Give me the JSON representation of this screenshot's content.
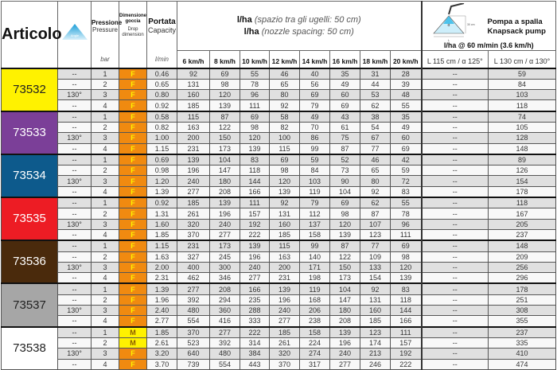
{
  "header": {
    "articolo": "Articolo",
    "angle_icon_label": "Angle",
    "pressure_it": "Pressione",
    "pressure_en": "Pressure",
    "pressure_unit": "bar",
    "drop_it": "Dimensione goccia",
    "drop_en": "Drop dimension",
    "capacity_it": "Portata",
    "capacity_en": "Capacity",
    "capacity_unit": "l/min",
    "lha_label": "l/ha",
    "spacing_it": "(spazio tra gli ugelli: 50 cm)",
    "spacing_en": "(nozzle spacing: 50 cm)",
    "speeds": [
      "6 km/h",
      "8 km/h",
      "10 km/h",
      "12 km/h",
      "14 km/h",
      "16 km/h",
      "18 km/h",
      "20 km/h"
    ],
    "knapsack_it": "Pompa a spalla",
    "knapsack_en": "Knapsack pump",
    "diagram_height": "30 cm",
    "diagram_alpha": "α",
    "diagram_L": "L",
    "knapsack_rate": "l/ha @ 60 m/min (3.6 km/h)",
    "knapsack_cols": [
      "L 115 cm / α 125°",
      "L 130 cm / α 130°"
    ]
  },
  "colors": {
    "drop_F": "#f08a10",
    "drop_M": "#fff200"
  },
  "groups": [
    {
      "code": "73532",
      "color": "#fff200",
      "text": "#222",
      "rows": [
        [
          "--",
          "1",
          "F",
          "0.46",
          "92",
          "69",
          "55",
          "46",
          "40",
          "35",
          "31",
          "28",
          "--",
          "59"
        ],
        [
          "--",
          "2",
          "F",
          "0.65",
          "131",
          "98",
          "78",
          "65",
          "56",
          "49",
          "44",
          "39",
          "--",
          "84"
        ],
        [
          "130°",
          "3",
          "F",
          "0.80",
          "160",
          "120",
          "96",
          "80",
          "69",
          "60",
          "53",
          "48",
          "--",
          "103"
        ],
        [
          "--",
          "4",
          "F",
          "0.92",
          "185",
          "139",
          "111",
          "92",
          "79",
          "69",
          "62",
          "55",
          "--",
          "118"
        ]
      ]
    },
    {
      "code": "73533",
      "color": "#7b3f98",
      "text": "#fff",
      "rows": [
        [
          "--",
          "1",
          "F",
          "0.58",
          "115",
          "87",
          "69",
          "58",
          "49",
          "43",
          "38",
          "35",
          "--",
          "74"
        ],
        [
          "--",
          "2",
          "F",
          "0.82",
          "163",
          "122",
          "98",
          "82",
          "70",
          "61",
          "54",
          "49",
          "--",
          "105"
        ],
        [
          "130°",
          "3",
          "F",
          "1.00",
          "200",
          "150",
          "120",
          "100",
          "86",
          "75",
          "67",
          "60",
          "--",
          "128"
        ],
        [
          "--",
          "4",
          "F",
          "1.15",
          "231",
          "173",
          "139",
          "115",
          "99",
          "87",
          "77",
          "69",
          "--",
          "148"
        ]
      ]
    },
    {
      "code": "73534",
      "color": "#0d5a8c",
      "text": "#fff",
      "rows": [
        [
          "--",
          "1",
          "F",
          "0.69",
          "139",
          "104",
          "83",
          "69",
          "59",
          "52",
          "46",
          "42",
          "--",
          "89"
        ],
        [
          "--",
          "2",
          "F",
          "0.98",
          "196",
          "147",
          "118",
          "98",
          "84",
          "73",
          "65",
          "59",
          "--",
          "126"
        ],
        [
          "130°",
          "3",
          "F",
          "1.20",
          "240",
          "180",
          "144",
          "120",
          "103",
          "90",
          "80",
          "72",
          "--",
          "154"
        ],
        [
          "--",
          "4",
          "F",
          "1.39",
          "277",
          "208",
          "166",
          "139",
          "119",
          "104",
          "92",
          "83",
          "--",
          "178"
        ]
      ]
    },
    {
      "code": "73535",
      "color": "#ed1c24",
      "text": "#fff",
      "rows": [
        [
          "--",
          "1",
          "F",
          "0.92",
          "185",
          "139",
          "111",
          "92",
          "79",
          "69",
          "62",
          "55",
          "--",
          "118"
        ],
        [
          "--",
          "2",
          "F",
          "1.31",
          "261",
          "196",
          "157",
          "131",
          "112",
          "98",
          "87",
          "78",
          "--",
          "167"
        ],
        [
          "130°",
          "3",
          "F",
          "1.60",
          "320",
          "240",
          "192",
          "160",
          "137",
          "120",
          "107",
          "96",
          "--",
          "205"
        ],
        [
          "--",
          "4",
          "F",
          "1.85",
          "370",
          "277",
          "222",
          "185",
          "158",
          "139",
          "123",
          "111",
          "--",
          "237"
        ]
      ]
    },
    {
      "code": "73536",
      "color": "#4a2a0c",
      "text": "#fff",
      "rows": [
        [
          "--",
          "1",
          "F",
          "1.15",
          "231",
          "173",
          "139",
          "115",
          "99",
          "87",
          "77",
          "69",
          "--",
          "148"
        ],
        [
          "--",
          "2",
          "F",
          "1.63",
          "327",
          "245",
          "196",
          "163",
          "140",
          "122",
          "109",
          "98",
          "--",
          "209"
        ],
        [
          "130°",
          "3",
          "F",
          "2.00",
          "400",
          "300",
          "240",
          "200",
          "171",
          "150",
          "133",
          "120",
          "--",
          "256"
        ],
        [
          "--",
          "4",
          "F",
          "2.31",
          "462",
          "346",
          "277",
          "231",
          "198",
          "173",
          "154",
          "139",
          "--",
          "296"
        ]
      ]
    },
    {
      "code": "73537",
      "color": "#a6a6a6",
      "text": "#222",
      "rows": [
        [
          "--",
          "1",
          "F",
          "1.39",
          "277",
          "208",
          "166",
          "139",
          "119",
          "104",
          "92",
          "83",
          "--",
          "178"
        ],
        [
          "--",
          "2",
          "F",
          "1.96",
          "392",
          "294",
          "235",
          "196",
          "168",
          "147",
          "131",
          "118",
          "--",
          "251"
        ],
        [
          "130°",
          "3",
          "F",
          "2.40",
          "480",
          "360",
          "288",
          "240",
          "206",
          "180",
          "160",
          "144",
          "--",
          "308"
        ],
        [
          "--",
          "4",
          "F",
          "2.77",
          "554",
          "416",
          "333",
          "277",
          "238",
          "208",
          "185",
          "166",
          "--",
          "355"
        ]
      ]
    },
    {
      "code": "73538",
      "color": "#ffffff",
      "text": "#222",
      "rows": [
        [
          "--",
          "1",
          "M",
          "1.85",
          "370",
          "277",
          "222",
          "185",
          "158",
          "139",
          "123",
          "111",
          "--",
          "237"
        ],
        [
          "--",
          "2",
          "M",
          "2.61",
          "523",
          "392",
          "314",
          "261",
          "224",
          "196",
          "174",
          "157",
          "--",
          "335"
        ],
        [
          "130°",
          "3",
          "F",
          "3.20",
          "640",
          "480",
          "384",
          "320",
          "274",
          "240",
          "213",
          "192",
          "--",
          "410"
        ],
        [
          "--",
          "4",
          "F",
          "3.70",
          "739",
          "554",
          "443",
          "370",
          "317",
          "277",
          "246",
          "222",
          "--",
          "474"
        ]
      ]
    }
  ]
}
